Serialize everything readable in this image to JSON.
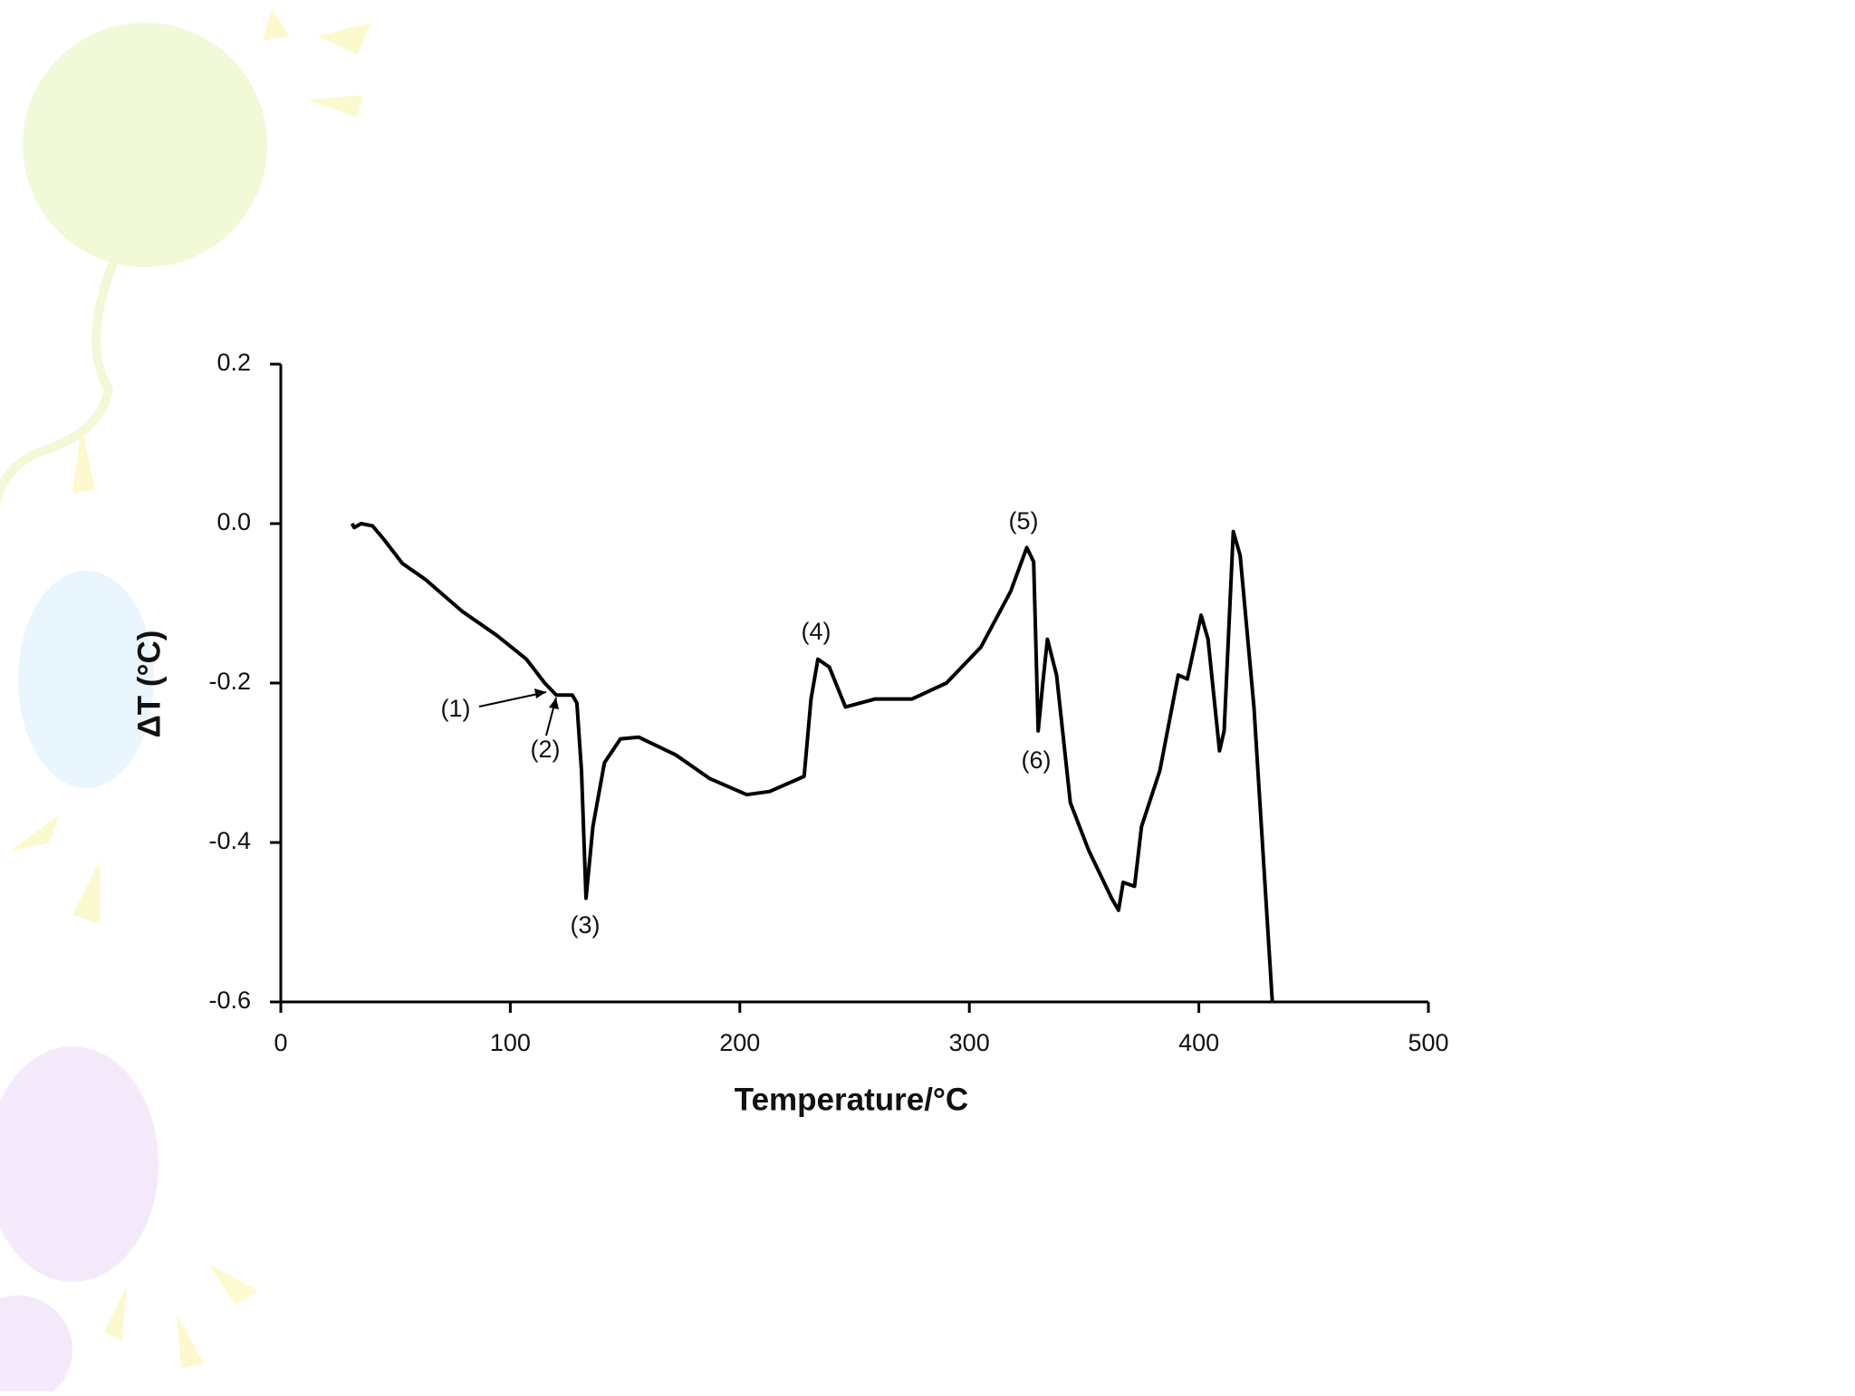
{
  "chart_data": {
    "type": "line",
    "x_label": "Temperature/°C",
    "y_label": "ΔT (°C)",
    "xlim": [
      0,
      500
    ],
    "xticks": [
      0,
      100,
      200,
      300,
      400,
      500
    ],
    "ylim": [
      -0.6,
      0.2
    ],
    "yticks": [
      -0.6,
      -0.4,
      -0.2,
      {
        "value": 0,
        "label": "0.0"
      },
      0.2
    ],
    "grid": false,
    "series": [
      {
        "color": "#000000",
        "x": [
          31,
          32,
          35,
          40,
          45,
          53,
          63,
          79,
          94,
          107,
          115,
          120,
          127,
          129,
          131,
          133,
          136,
          141,
          148,
          156,
          172,
          187,
          203,
          213,
          228,
          231,
          234,
          239,
          246,
          259,
          275,
          290,
          305,
          318,
          325,
          328,
          330,
          332,
          334,
          338,
          344,
          352,
          362,
          365,
          367,
          372,
          375,
          383,
          391,
          395,
          401,
          404,
          409,
          411,
          415,
          418,
          424,
          432
        ],
        "values": [
          0,
          -0.005,
          0,
          -0.003,
          -0.02,
          -0.05,
          -0.07,
          -0.11,
          -0.14,
          -0.17,
          -0.2,
          -0.215,
          -0.215,
          -0.225,
          -0.31,
          -0.47,
          -0.38,
          -0.3,
          -0.27,
          -0.268,
          -0.29,
          -0.32,
          -0.34,
          -0.336,
          -0.317,
          -0.22,
          -0.17,
          -0.18,
          -0.23,
          -0.22,
          -0.22,
          -0.2,
          -0.155,
          -0.085,
          -0.03,
          -0.048,
          -0.26,
          -0.2,
          -0.145,
          -0.19,
          -0.35,
          -0.41,
          -0.47,
          -0.485,
          -0.45,
          -0.455,
          -0.38,
          -0.31,
          -0.19,
          -0.195,
          -0.115,
          -0.145,
          -0.285,
          -0.26,
          -0.01,
          -0.04,
          -0.23,
          -0.6
        ]
      }
    ],
    "annotations": [
      "(1)",
      "(2)",
      "(3)",
      "(4)",
      "(5)",
      "(6)"
    ]
  }
}
